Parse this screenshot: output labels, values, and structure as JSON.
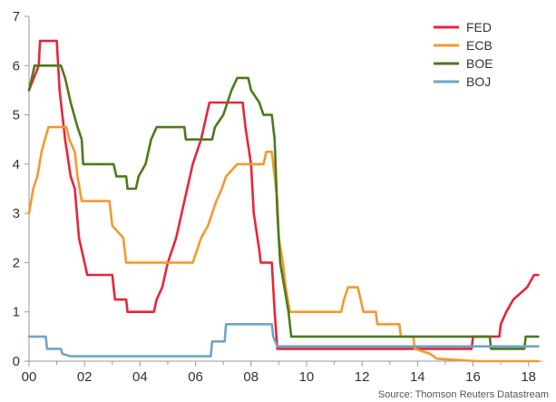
{
  "chart_data": {
    "type": "line",
    "x_ticks": [
      "00",
      "02",
      "04",
      "06",
      "08",
      "10",
      "12",
      "14",
      "16",
      "18"
    ],
    "y_ticks": [
      "0",
      "1",
      "2",
      "3",
      "4",
      "5",
      "6",
      "7"
    ],
    "xlim": [
      2000,
      2018.5
    ],
    "ylim": [
      0,
      7
    ],
    "grid": false,
    "legend_position": "top-right",
    "source": "Source: Thomson Reuters Datastream",
    "series": [
      {
        "name": "FED",
        "color": "#e8253a",
        "points": [
          [
            2000.0,
            5.5
          ],
          [
            2000.35,
            6.0
          ],
          [
            2000.4,
            6.5
          ],
          [
            2001.0,
            6.5
          ],
          [
            2001.1,
            5.5
          ],
          [
            2001.3,
            4.5
          ],
          [
            2001.5,
            3.75
          ],
          [
            2001.65,
            3.5
          ],
          [
            2001.8,
            2.5
          ],
          [
            2002.0,
            2.0
          ],
          [
            2002.1,
            1.75
          ],
          [
            2003.0,
            1.75
          ],
          [
            2003.1,
            1.25
          ],
          [
            2003.5,
            1.25
          ],
          [
            2003.55,
            1.0
          ],
          [
            2004.5,
            1.0
          ],
          [
            2004.6,
            1.25
          ],
          [
            2004.8,
            1.5
          ],
          [
            2005.0,
            2.0
          ],
          [
            2005.3,
            2.5
          ],
          [
            2005.6,
            3.25
          ],
          [
            2005.9,
            4.0
          ],
          [
            2006.2,
            4.5
          ],
          [
            2006.5,
            5.25
          ],
          [
            2007.7,
            5.25
          ],
          [
            2007.8,
            4.75
          ],
          [
            2008.0,
            4.0
          ],
          [
            2008.1,
            3.0
          ],
          [
            2008.3,
            2.25
          ],
          [
            2008.35,
            2.0
          ],
          [
            2008.75,
            2.0
          ],
          [
            2008.85,
            1.0
          ],
          [
            2008.95,
            0.25
          ],
          [
            2015.95,
            0.25
          ],
          [
            2016.0,
            0.5
          ],
          [
            2016.95,
            0.5
          ],
          [
            2017.0,
            0.75
          ],
          [
            2017.2,
            1.0
          ],
          [
            2017.45,
            1.25
          ],
          [
            2017.95,
            1.5
          ],
          [
            2018.2,
            1.75
          ],
          [
            2018.35,
            1.75
          ]
        ]
      },
      {
        "name": "ECB",
        "color": "#f29a2e",
        "points": [
          [
            2000.0,
            3.0
          ],
          [
            2000.15,
            3.5
          ],
          [
            2000.3,
            3.75
          ],
          [
            2000.45,
            4.25
          ],
          [
            2000.7,
            4.75
          ],
          [
            2001.35,
            4.75
          ],
          [
            2001.45,
            4.5
          ],
          [
            2001.65,
            4.25
          ],
          [
            2001.75,
            3.75
          ],
          [
            2001.9,
            3.25
          ],
          [
            2002.9,
            3.25
          ],
          [
            2003.0,
            2.75
          ],
          [
            2003.4,
            2.5
          ],
          [
            2003.5,
            2.0
          ],
          [
            2005.9,
            2.0
          ],
          [
            2006.05,
            2.25
          ],
          [
            2006.2,
            2.5
          ],
          [
            2006.45,
            2.75
          ],
          [
            2006.6,
            3.0
          ],
          [
            2006.75,
            3.25
          ],
          [
            2006.95,
            3.5
          ],
          [
            2007.1,
            3.75
          ],
          [
            2007.5,
            4.0
          ],
          [
            2008.45,
            4.0
          ],
          [
            2008.55,
            4.25
          ],
          [
            2008.75,
            4.25
          ],
          [
            2008.85,
            3.75
          ],
          [
            2008.95,
            3.25
          ],
          [
            2009.0,
            2.5
          ],
          [
            2009.15,
            2.0
          ],
          [
            2009.25,
            1.5
          ],
          [
            2009.4,
            1.0
          ],
          [
            2011.25,
            1.0
          ],
          [
            2011.35,
            1.25
          ],
          [
            2011.5,
            1.5
          ],
          [
            2011.85,
            1.5
          ],
          [
            2011.95,
            1.25
          ],
          [
            2012.05,
            1.0
          ],
          [
            2012.5,
            1.0
          ],
          [
            2012.55,
            0.75
          ],
          [
            2013.35,
            0.75
          ],
          [
            2013.4,
            0.5
          ],
          [
            2013.85,
            0.5
          ],
          [
            2013.9,
            0.25
          ],
          [
            2014.45,
            0.15
          ],
          [
            2014.7,
            0.05
          ],
          [
            2016.15,
            0.0
          ],
          [
            2018.35,
            0.0
          ]
        ]
      },
      {
        "name": "BOE",
        "color": "#4d7a1d",
        "points": [
          [
            2000.0,
            5.5
          ],
          [
            2000.1,
            5.75
          ],
          [
            2000.2,
            6.0
          ],
          [
            2001.15,
            6.0
          ],
          [
            2001.3,
            5.75
          ],
          [
            2001.5,
            5.25
          ],
          [
            2001.75,
            4.75
          ],
          [
            2001.9,
            4.5
          ],
          [
            2001.95,
            4.0
          ],
          [
            2003.05,
            4.0
          ],
          [
            2003.15,
            3.75
          ],
          [
            2003.5,
            3.75
          ],
          [
            2003.55,
            3.5
          ],
          [
            2003.85,
            3.5
          ],
          [
            2003.95,
            3.75
          ],
          [
            2004.2,
            4.0
          ],
          [
            2004.4,
            4.5
          ],
          [
            2004.6,
            4.75
          ],
          [
            2005.6,
            4.75
          ],
          [
            2005.65,
            4.5
          ],
          [
            2006.6,
            4.5
          ],
          [
            2006.7,
            4.75
          ],
          [
            2007.0,
            5.0
          ],
          [
            2007.3,
            5.5
          ],
          [
            2007.5,
            5.75
          ],
          [
            2007.9,
            5.75
          ],
          [
            2008.0,
            5.5
          ],
          [
            2008.3,
            5.25
          ],
          [
            2008.45,
            5.0
          ],
          [
            2008.75,
            5.0
          ],
          [
            2008.85,
            4.5
          ],
          [
            2008.95,
            3.0
          ],
          [
            2009.05,
            2.0
          ],
          [
            2009.2,
            1.5
          ],
          [
            2009.35,
            1.0
          ],
          [
            2009.45,
            0.5
          ],
          [
            2016.6,
            0.5
          ],
          [
            2016.65,
            0.25
          ],
          [
            2017.85,
            0.25
          ],
          [
            2017.9,
            0.5
          ],
          [
            2018.35,
            0.5
          ]
        ]
      },
      {
        "name": "BOJ",
        "color": "#6fa5c5",
        "points": [
          [
            2000.0,
            0.5
          ],
          [
            2000.6,
            0.5
          ],
          [
            2000.65,
            0.25
          ],
          [
            2001.15,
            0.25
          ],
          [
            2001.2,
            0.15
          ],
          [
            2001.5,
            0.1
          ],
          [
            2006.55,
            0.1
          ],
          [
            2006.6,
            0.4
          ],
          [
            2007.05,
            0.4
          ],
          [
            2007.1,
            0.75
          ],
          [
            2008.75,
            0.75
          ],
          [
            2008.8,
            0.5
          ],
          [
            2008.95,
            0.3
          ],
          [
            2018.35,
            0.3
          ]
        ]
      }
    ]
  }
}
